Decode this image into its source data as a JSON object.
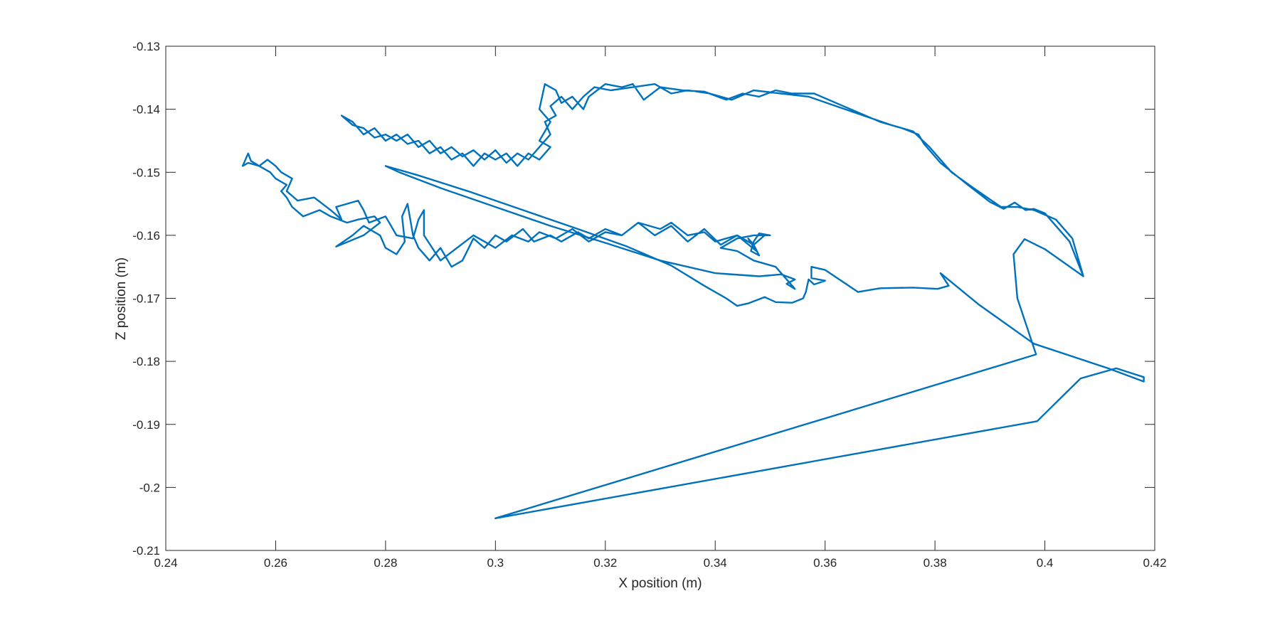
{
  "chart_data": {
    "type": "line",
    "title": "",
    "xlabel": "X position (m)",
    "ylabel": "Z position (m)",
    "xlim": [
      0.24,
      0.42
    ],
    "ylim": [
      -0.21,
      -0.13
    ],
    "xticks": [
      0.24,
      0.26,
      0.28,
      0.3,
      0.32,
      0.34,
      0.36,
      0.38,
      0.4,
      0.42
    ],
    "yticks": [
      -0.13,
      -0.14,
      -0.15,
      -0.16,
      -0.17,
      -0.18,
      -0.19,
      -0.2,
      -0.21
    ],
    "xtick_labels": [
      "0.24",
      "0.26",
      "0.28",
      "0.3",
      "0.32",
      "0.34",
      "0.36",
      "0.38",
      "0.4",
      "0.42"
    ],
    "ytick_labels": [
      "-0.13",
      "-0.14",
      "-0.15",
      "-0.16",
      "-0.17",
      "-0.18",
      "-0.19",
      "-0.2",
      "-0.21"
    ],
    "grid": false,
    "legend": "none",
    "series": [
      {
        "color": "#0072BD",
        "points": [
          [
            0.3,
            -0.2049
          ],
          [
            0.3986,
            -0.1895
          ],
          [
            0.4065,
            -0.1827
          ],
          [
            0.413,
            -0.1811
          ],
          [
            0.418,
            -0.1825
          ],
          [
            0.418,
            -0.1832
          ],
          [
            0.4115,
            -0.1811
          ],
          [
            0.398,
            -0.1772
          ],
          [
            0.388,
            -0.171
          ],
          [
            0.381,
            -0.166
          ],
          [
            0.3825,
            -0.168
          ],
          [
            0.3805,
            -0.1685
          ],
          [
            0.376,
            -0.1683
          ],
          [
            0.37,
            -0.1684
          ],
          [
            0.366,
            -0.169
          ],
          [
            0.36,
            -0.1655
          ],
          [
            0.3575,
            -0.165
          ],
          [
            0.3575,
            -0.1668
          ],
          [
            0.36,
            -0.1672
          ],
          [
            0.358,
            -0.1678
          ],
          [
            0.357,
            -0.167
          ],
          [
            0.3565,
            -0.169
          ],
          [
            0.356,
            -0.17
          ],
          [
            0.354,
            -0.1707
          ],
          [
            0.351,
            -0.1706
          ],
          [
            0.349,
            -0.1698
          ],
          [
            0.346,
            -0.1708
          ],
          [
            0.344,
            -0.1712
          ],
          [
            0.342,
            -0.17
          ],
          [
            0.338,
            -0.168
          ],
          [
            0.332,
            -0.1648
          ],
          [
            0.324,
            -0.1618
          ],
          [
            0.315,
            -0.159
          ],
          [
            0.305,
            -0.156
          ],
          [
            0.295,
            -0.153
          ],
          [
            0.286,
            -0.1505
          ],
          [
            0.28,
            -0.149
          ],
          [
            0.2825,
            -0.15
          ],
          [
            0.29,
            -0.1525
          ],
          [
            0.3,
            -0.1555
          ],
          [
            0.31,
            -0.1585
          ],
          [
            0.32,
            -0.1612
          ],
          [
            0.33,
            -0.164
          ],
          [
            0.34,
            -0.166
          ],
          [
            0.348,
            -0.1665
          ],
          [
            0.352,
            -0.1662
          ],
          [
            0.3545,
            -0.167
          ],
          [
            0.353,
            -0.1677
          ],
          [
            0.3545,
            -0.1685
          ],
          [
            0.351,
            -0.165
          ],
          [
            0.347,
            -0.164
          ],
          [
            0.344,
            -0.1625
          ],
          [
            0.341,
            -0.162
          ],
          [
            0.344,
            -0.1605
          ],
          [
            0.347,
            -0.16
          ],
          [
            0.35,
            -0.16
          ],
          [
            0.348,
            -0.1597
          ],
          [
            0.347,
            -0.161
          ],
          [
            0.3465,
            -0.1625
          ],
          [
            0.348,
            -0.1632
          ],
          [
            0.347,
            -0.1615
          ],
          [
            0.346,
            -0.1605
          ],
          [
            0.3475,
            -0.1625
          ],
          [
            0.344,
            -0.16
          ],
          [
            0.34,
            -0.161
          ],
          [
            0.338,
            -0.1595
          ],
          [
            0.335,
            -0.16
          ],
          [
            0.332,
            -0.158
          ],
          [
            0.33,
            -0.159
          ],
          [
            0.326,
            -0.158
          ],
          [
            0.323,
            -0.16
          ],
          [
            0.32,
            -0.159
          ],
          [
            0.317,
            -0.1605
          ],
          [
            0.315,
            -0.1595
          ],
          [
            0.312,
            -0.161
          ],
          [
            0.31,
            -0.16
          ],
          [
            0.307,
            -0.161
          ],
          [
            0.305,
            -0.159
          ],
          [
            0.302,
            -0.161
          ],
          [
            0.3,
            -0.16
          ],
          [
            0.298,
            -0.162
          ],
          [
            0.296,
            -0.1605
          ],
          [
            0.294,
            -0.164
          ],
          [
            0.292,
            -0.165
          ],
          [
            0.29,
            -0.162
          ],
          [
            0.288,
            -0.164
          ],
          [
            0.286,
            -0.162
          ],
          [
            0.285,
            -0.16
          ],
          [
            0.284,
            -0.155
          ],
          [
            0.283,
            -0.157
          ],
          [
            0.2835,
            -0.161
          ],
          [
            0.282,
            -0.163
          ],
          [
            0.28,
            -0.162
          ],
          [
            0.279,
            -0.16
          ],
          [
            0.276,
            -0.1585
          ],
          [
            0.274,
            -0.16
          ],
          [
            0.271,
            -0.1618
          ],
          [
            0.276,
            -0.16
          ],
          [
            0.279,
            -0.158
          ],
          [
            0.278,
            -0.157
          ],
          [
            0.275,
            -0.1575
          ],
          [
            0.273,
            -0.158
          ],
          [
            0.27,
            -0.157
          ],
          [
            0.268,
            -0.156
          ],
          [
            0.265,
            -0.157
          ],
          [
            0.263,
            -0.1555
          ],
          [
            0.262,
            -0.154
          ],
          [
            0.261,
            -0.153
          ],
          [
            0.262,
            -0.152
          ],
          [
            0.26,
            -0.151
          ],
          [
            0.259,
            -0.15
          ],
          [
            0.257,
            -0.149
          ],
          [
            0.2555,
            -0.1482
          ],
          [
            0.255,
            -0.147
          ],
          [
            0.254,
            -0.149
          ],
          [
            0.255,
            -0.1485
          ],
          [
            0.257,
            -0.149
          ],
          [
            0.2585,
            -0.148
          ],
          [
            0.26,
            -0.149
          ],
          [
            0.261,
            -0.15
          ],
          [
            0.263,
            -0.151
          ],
          [
            0.262,
            -0.153
          ],
          [
            0.264,
            -0.1545
          ],
          [
            0.267,
            -0.154
          ],
          [
            0.27,
            -0.156
          ],
          [
            0.272,
            -0.1575
          ],
          [
            0.271,
            -0.1555
          ],
          [
            0.275,
            -0.1545
          ],
          [
            0.276,
            -0.156
          ],
          [
            0.277,
            -0.158
          ],
          [
            0.28,
            -0.157
          ],
          [
            0.282,
            -0.16
          ],
          [
            0.285,
            -0.1605
          ],
          [
            0.286,
            -0.1575
          ],
          [
            0.287,
            -0.156
          ],
          [
            0.287,
            -0.16
          ],
          [
            0.29,
            -0.164
          ],
          [
            0.293,
            -0.162
          ],
          [
            0.296,
            -0.16
          ],
          [
            0.298,
            -0.161
          ],
          [
            0.3,
            -0.162
          ],
          [
            0.303,
            -0.16
          ],
          [
            0.306,
            -0.161
          ],
          [
            0.308,
            -0.1595
          ],
          [
            0.311,
            -0.1605
          ],
          [
            0.314,
            -0.159
          ],
          [
            0.317,
            -0.161
          ],
          [
            0.32,
            -0.1595
          ],
          [
            0.323,
            -0.16
          ],
          [
            0.326,
            -0.158
          ],
          [
            0.329,
            -0.16
          ],
          [
            0.332,
            -0.1585
          ],
          [
            0.335,
            -0.161
          ],
          [
            0.338,
            -0.159
          ],
          [
            0.341,
            -0.1615
          ],
          [
            0.344,
            -0.16
          ],
          [
            0.347,
            -0.1615
          ],
          [
            0.349,
            -0.16
          ]
        ]
      },
      {
        "color": "#0072BD",
        "points": [
          [
            0.3,
            -0.2049
          ],
          [
            0.3984,
            -0.1789
          ],
          [
            0.395,
            -0.17
          ],
          [
            0.3943,
            -0.163
          ],
          [
            0.3963,
            -0.1606
          ],
          [
            0.4,
            -0.1622
          ],
          [
            0.407,
            -0.1665
          ],
          [
            0.4045,
            -0.161
          ],
          [
            0.4,
            -0.1565
          ],
          [
            0.398,
            -0.1558
          ],
          [
            0.3965,
            -0.156
          ],
          [
            0.3945,
            -0.1548
          ],
          [
            0.3925,
            -0.1558
          ],
          [
            0.39,
            -0.1547
          ],
          [
            0.386,
            -0.152
          ],
          [
            0.381,
            -0.1485
          ],
          [
            0.378,
            -0.1455
          ],
          [
            0.377,
            -0.144
          ],
          [
            0.374,
            -0.143
          ],
          [
            0.37,
            -0.142
          ],
          [
            0.366,
            -0.1405
          ],
          [
            0.362,
            -0.139
          ],
          [
            0.358,
            -0.1375
          ],
          [
            0.354,
            -0.1375
          ],
          [
            0.351,
            -0.137
          ],
          [
            0.348,
            -0.138
          ],
          [
            0.345,
            -0.1375
          ],
          [
            0.342,
            -0.1385
          ],
          [
            0.338,
            -0.1372
          ],
          [
            0.334,
            -0.137
          ],
          [
            0.33,
            -0.1365
          ],
          [
            0.327,
            -0.1385
          ],
          [
            0.325,
            -0.136
          ],
          [
            0.323,
            -0.1365
          ],
          [
            0.32,
            -0.136
          ],
          [
            0.317,
            -0.138
          ],
          [
            0.316,
            -0.14
          ],
          [
            0.314,
            -0.138
          ],
          [
            0.312,
            -0.139
          ],
          [
            0.311,
            -0.137
          ],
          [
            0.309,
            -0.136
          ],
          [
            0.308,
            -0.14
          ],
          [
            0.31,
            -0.142
          ],
          [
            0.308,
            -0.145
          ],
          [
            0.31,
            -0.146
          ],
          [
            0.308,
            -0.148
          ],
          [
            0.306,
            -0.147
          ],
          [
            0.304,
            -0.149
          ],
          [
            0.302,
            -0.147
          ],
          [
            0.3,
            -0.148
          ],
          [
            0.298,
            -0.147
          ],
          [
            0.296,
            -0.149
          ],
          [
            0.294,
            -0.147
          ],
          [
            0.292,
            -0.148
          ],
          [
            0.29,
            -0.146
          ],
          [
            0.288,
            -0.147
          ],
          [
            0.286,
            -0.145
          ],
          [
            0.284,
            -0.1455
          ],
          [
            0.282,
            -0.144
          ],
          [
            0.28,
            -0.145
          ],
          [
            0.278,
            -0.143
          ],
          [
            0.276,
            -0.144
          ],
          [
            0.274,
            -0.142
          ],
          [
            0.272,
            -0.141
          ],
          [
            0.274,
            -0.1425
          ],
          [
            0.276,
            -0.143
          ],
          [
            0.278,
            -0.1445
          ],
          [
            0.28,
            -0.144
          ],
          [
            0.282,
            -0.145
          ],
          [
            0.284,
            -0.144
          ],
          [
            0.286,
            -0.146
          ],
          [
            0.288,
            -0.145
          ],
          [
            0.29,
            -0.147
          ],
          [
            0.292,
            -0.146
          ],
          [
            0.294,
            -0.1475
          ],
          [
            0.296,
            -0.1465
          ],
          [
            0.298,
            -0.148
          ],
          [
            0.3,
            -0.1465
          ],
          [
            0.302,
            -0.1485
          ],
          [
            0.304,
            -0.147
          ],
          [
            0.306,
            -0.148
          ],
          [
            0.308,
            -0.146
          ],
          [
            0.31,
            -0.144
          ],
          [
            0.309,
            -0.142
          ],
          [
            0.311,
            -0.141
          ],
          [
            0.31,
            -0.1395
          ],
          [
            0.312,
            -0.138
          ],
          [
            0.314,
            -0.14
          ],
          [
            0.316,
            -0.138
          ],
          [
            0.318,
            -0.1365
          ],
          [
            0.321,
            -0.137
          ],
          [
            0.325,
            -0.1365
          ],
          [
            0.329,
            -0.136
          ],
          [
            0.332,
            -0.1375
          ],
          [
            0.335,
            -0.137
          ],
          [
            0.339,
            -0.1375
          ],
          [
            0.343,
            -0.1385
          ],
          [
            0.347,
            -0.137
          ],
          [
            0.352,
            -0.1375
          ],
          [
            0.357,
            -0.138
          ],
          [
            0.362,
            -0.1395
          ],
          [
            0.367,
            -0.141
          ],
          [
            0.372,
            -0.1425
          ],
          [
            0.376,
            -0.1435
          ],
          [
            0.379,
            -0.146
          ],
          [
            0.383,
            -0.15
          ],
          [
            0.387,
            -0.1525
          ],
          [
            0.392,
            -0.1555
          ],
          [
            0.395,
            -0.1555
          ],
          [
            0.398,
            -0.156
          ],
          [
            0.402,
            -0.1575
          ],
          [
            0.405,
            -0.1605
          ],
          [
            0.407,
            -0.1665
          ]
        ]
      }
    ]
  }
}
